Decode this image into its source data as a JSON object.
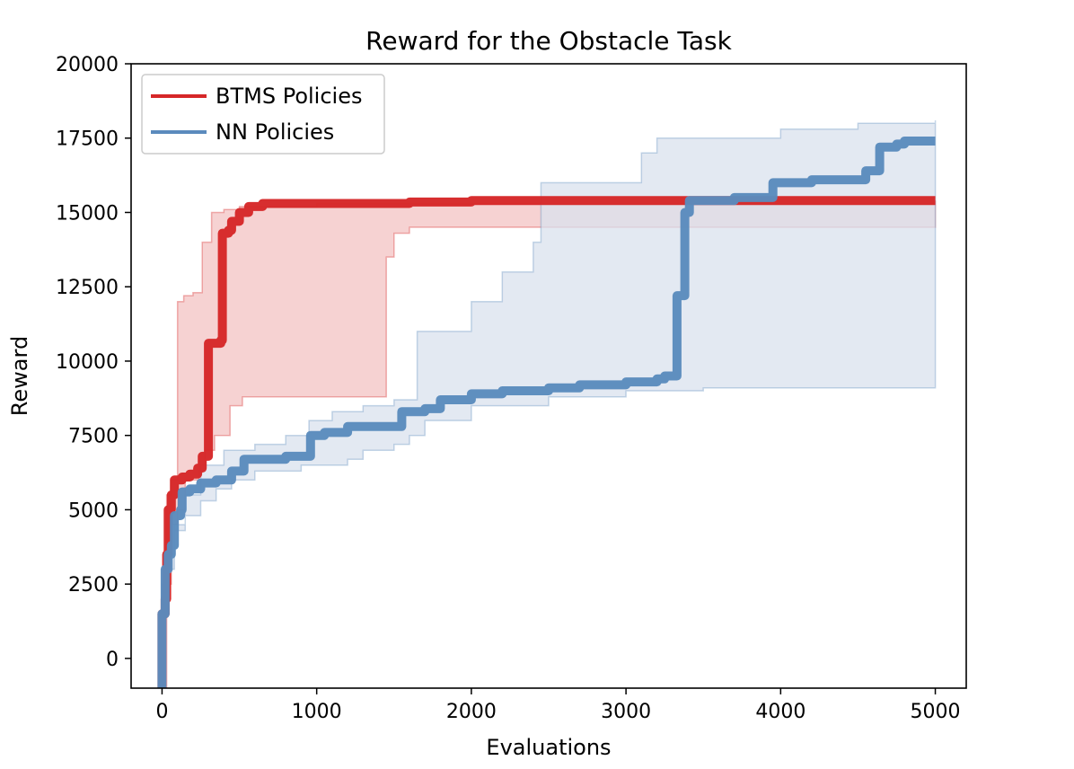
{
  "chart_data": {
    "type": "line",
    "title": "Reward for the Obstacle Task",
    "xlabel": "Evaluations",
    "ylabel": "Reward",
    "xlim": [
      -200,
      5200
    ],
    "ylim": [
      -1000,
      20000
    ],
    "xticks": [
      0,
      1000,
      2000,
      3000,
      4000,
      5000
    ],
    "yticks": [
      0,
      2500,
      5000,
      7500,
      10000,
      12500,
      15000,
      17500,
      20000
    ],
    "grid": false,
    "legend_position": "upper-left",
    "series": [
      {
        "name": "BTMS Policies",
        "color": "#d62728",
        "band_color": "#f3c3c3",
        "mean": [
          [
            -10,
            -1000
          ],
          [
            0,
            1500
          ],
          [
            20,
            2000
          ],
          [
            30,
            3500
          ],
          [
            40,
            5000
          ],
          [
            60,
            5500
          ],
          [
            80,
            6000
          ],
          [
            130,
            6100
          ],
          [
            180,
            6200
          ],
          [
            230,
            6400
          ],
          [
            260,
            6800
          ],
          [
            300,
            6900
          ],
          [
            300,
            10600
          ],
          [
            380,
            10700
          ],
          [
            390,
            14300
          ],
          [
            430,
            14400
          ],
          [
            450,
            14700
          ],
          [
            500,
            15000
          ],
          [
            560,
            15200
          ],
          [
            650,
            15300
          ],
          [
            1000,
            15300
          ],
          [
            1600,
            15350
          ],
          [
            2000,
            15400
          ],
          [
            5000,
            15400
          ]
        ],
        "upper": [
          [
            0,
            2500
          ],
          [
            30,
            5500
          ],
          [
            60,
            6000
          ],
          [
            100,
            6200
          ],
          [
            100,
            12000
          ],
          [
            140,
            12200
          ],
          [
            200,
            12300
          ],
          [
            260,
            14000
          ],
          [
            320,
            15000
          ],
          [
            400,
            15100
          ],
          [
            500,
            15200
          ],
          [
            1000,
            15300
          ],
          [
            5000,
            15400
          ]
        ],
        "lower": [
          [
            0,
            -1000
          ],
          [
            30,
            2500
          ],
          [
            60,
            4500
          ],
          [
            100,
            5000
          ],
          [
            150,
            6000
          ],
          [
            240,
            6300
          ],
          [
            280,
            7000
          ],
          [
            340,
            7500
          ],
          [
            440,
            8500
          ],
          [
            520,
            8800
          ],
          [
            1450,
            8800
          ],
          [
            1450,
            13500
          ],
          [
            1500,
            14300
          ],
          [
            1600,
            14500
          ],
          [
            5000,
            14500
          ]
        ]
      },
      {
        "name": "NN Policies",
        "color": "#5b8bbd",
        "band_color": "#d9e2ee",
        "mean": [
          [
            -10,
            -1000
          ],
          [
            0,
            1500
          ],
          [
            20,
            3000
          ],
          [
            40,
            3500
          ],
          [
            60,
            3800
          ],
          [
            80,
            4800
          ],
          [
            120,
            5000
          ],
          [
            130,
            5600
          ],
          [
            180,
            5700
          ],
          [
            250,
            5900
          ],
          [
            350,
            6000
          ],
          [
            450,
            6300
          ],
          [
            530,
            6700
          ],
          [
            700,
            6700
          ],
          [
            800,
            6800
          ],
          [
            960,
            6800
          ],
          [
            960,
            7500
          ],
          [
            1050,
            7600
          ],
          [
            1200,
            7600
          ],
          [
            1200,
            7800
          ],
          [
            1550,
            7800
          ],
          [
            1550,
            8300
          ],
          [
            1700,
            8400
          ],
          [
            1800,
            8700
          ],
          [
            2000,
            8900
          ],
          [
            2200,
            9000
          ],
          [
            2500,
            9100
          ],
          [
            2700,
            9200
          ],
          [
            3000,
            9300
          ],
          [
            3200,
            9400
          ],
          [
            3250,
            9500
          ],
          [
            3330,
            9500
          ],
          [
            3330,
            12200
          ],
          [
            3380,
            12300
          ],
          [
            3380,
            15000
          ],
          [
            3410,
            15400
          ],
          [
            3700,
            15500
          ],
          [
            3950,
            15500
          ],
          [
            3950,
            16000
          ],
          [
            4200,
            16100
          ],
          [
            4550,
            16100
          ],
          [
            4550,
            16400
          ],
          [
            4640,
            16400
          ],
          [
            4640,
            17200
          ],
          [
            4750,
            17300
          ],
          [
            4800,
            17400
          ],
          [
            5000,
            17400
          ]
        ],
        "upper": [
          [
            0,
            2500
          ],
          [
            30,
            3500
          ],
          [
            80,
            4500
          ],
          [
            150,
            5500
          ],
          [
            250,
            6500
          ],
          [
            400,
            7000
          ],
          [
            600,
            7200
          ],
          [
            800,
            7500
          ],
          [
            950,
            8000
          ],
          [
            1100,
            8300
          ],
          [
            1300,
            8500
          ],
          [
            1500,
            8700
          ],
          [
            1650,
            11000
          ],
          [
            2000,
            12000
          ],
          [
            2200,
            13000
          ],
          [
            2400,
            14000
          ],
          [
            2450,
            16000
          ],
          [
            3100,
            16100
          ],
          [
            3100,
            17000
          ],
          [
            3200,
            17500
          ],
          [
            4000,
            17800
          ],
          [
            4500,
            18000
          ],
          [
            5000,
            18100
          ]
        ],
        "lower": [
          [
            0,
            -1000
          ],
          [
            20,
            2000
          ],
          [
            50,
            3000
          ],
          [
            80,
            4300
          ],
          [
            150,
            4800
          ],
          [
            250,
            5300
          ],
          [
            350,
            5700
          ],
          [
            450,
            6000
          ],
          [
            600,
            6300
          ],
          [
            900,
            6500
          ],
          [
            1200,
            6700
          ],
          [
            1300,
            7000
          ],
          [
            1500,
            7200
          ],
          [
            1600,
            7500
          ],
          [
            1700,
            8000
          ],
          [
            2000,
            8500
          ],
          [
            2500,
            8800
          ],
          [
            3000,
            9000
          ],
          [
            3500,
            9100
          ],
          [
            4000,
            9100
          ],
          [
            5000,
            9100
          ]
        ]
      }
    ]
  }
}
